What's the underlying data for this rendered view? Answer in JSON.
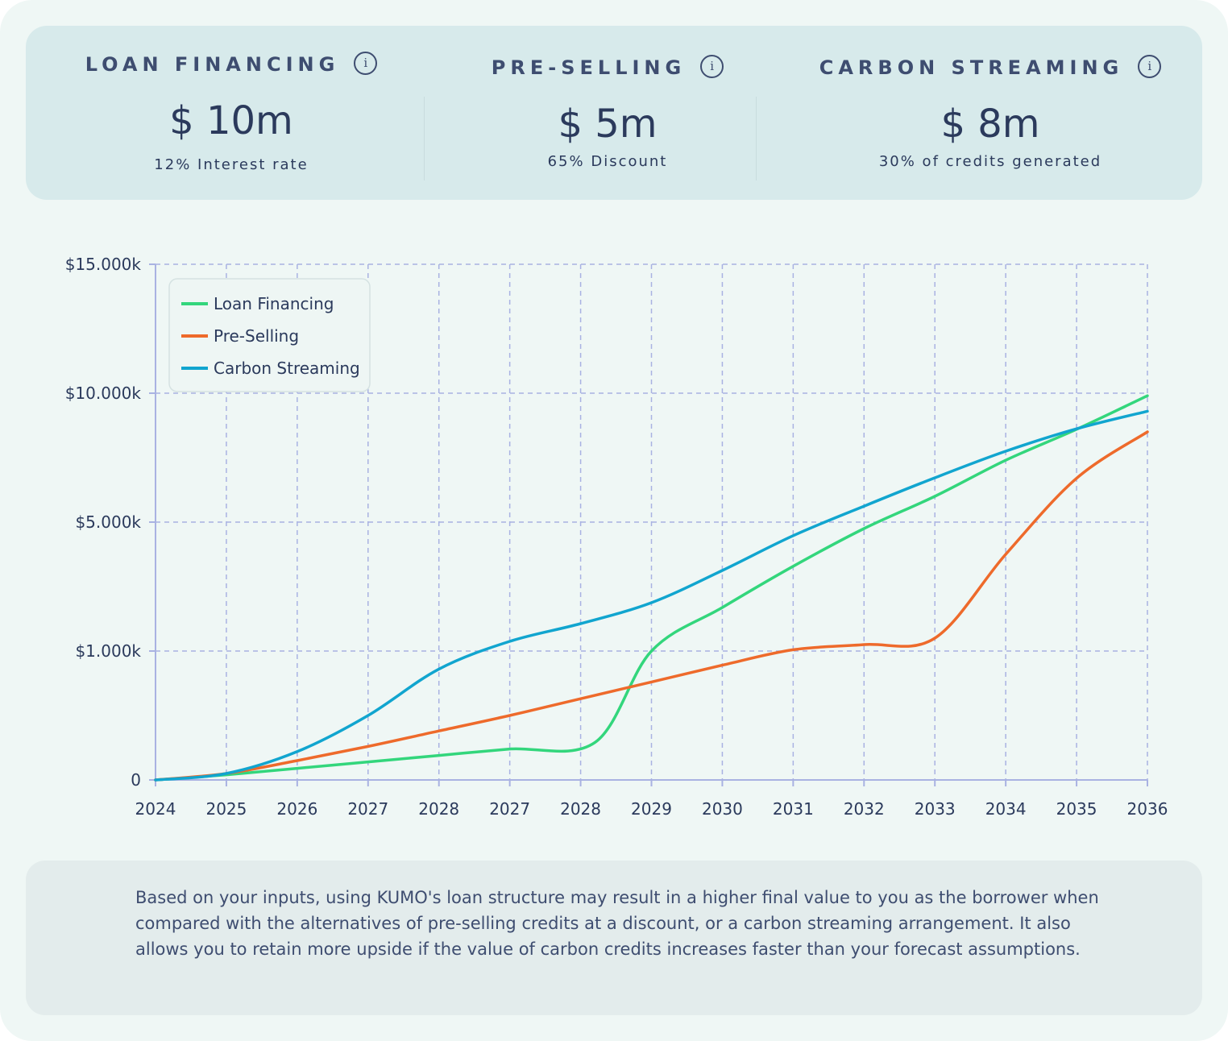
{
  "summary": {
    "loan": {
      "label": "LOAN FINANCING",
      "value": "$ 10m",
      "sub": "12% Interest rate",
      "icon": "info-icon"
    },
    "pre": {
      "label": "PRE-SELLING",
      "value": "$ 5m",
      "sub": "65% Discount",
      "icon": "info-icon"
    },
    "carbon": {
      "label": "CARBON STREAMING",
      "value": "$ 8m",
      "sub": "30% of credits generated",
      "icon": "info-icon"
    }
  },
  "colors": {
    "loan": "#33d67c",
    "pre": "#ee6a2b",
    "carbon": "#11a5cf",
    "grid": "#a9b2e2",
    "axis": "#a9b2e2",
    "text": "#2b3a5c"
  },
  "chart_data": {
    "type": "line",
    "title": "",
    "xlabel": "",
    "ylabel": "",
    "x_tick_labels": [
      "2024",
      "2025",
      "2026",
      "2027",
      "2028",
      "2027",
      "2028",
      "2029",
      "2030",
      "2031",
      "2032",
      "2033",
      "2034",
      "2035",
      "2036"
    ],
    "y_tick_labels": [
      "0",
      "$1.000k",
      "$5.000k",
      "$10.000k",
      "$15.000k"
    ],
    "y_scale_note": "non-linear axis: gridline levels 0, 1000, 5000, 10000, 15000 are equally spaced",
    "y_levels": [
      0,
      1000,
      5000,
      10000,
      15000
    ],
    "xlim": [
      0,
      14
    ],
    "ylim": [
      0,
      15000
    ],
    "legend": {
      "position": "top-left"
    },
    "series": [
      {
        "name": "Loan Financing",
        "color_key": "loan",
        "points": [
          [
            0,
            0
          ],
          [
            1,
            40
          ],
          [
            2,
            90
          ],
          [
            3,
            140
          ],
          [
            4,
            190
          ],
          [
            5,
            240
          ],
          [
            6.2,
            290
          ],
          [
            7,
            1000
          ],
          [
            8,
            2350
          ],
          [
            9,
            3630
          ],
          [
            10,
            4800
          ],
          [
            11,
            6000
          ],
          [
            12,
            7400
          ],
          [
            13,
            8600
          ],
          [
            14,
            9900
          ]
        ]
      },
      {
        "name": "Pre-Selling",
        "color_key": "pre",
        "points": [
          [
            0,
            0
          ],
          [
            1,
            50
          ],
          [
            2,
            150
          ],
          [
            3,
            260
          ],
          [
            4,
            380
          ],
          [
            5,
            500
          ],
          [
            6,
            630
          ],
          [
            7,
            760
          ],
          [
            8,
            890
          ],
          [
            9,
            1040
          ],
          [
            10,
            1200
          ],
          [
            11,
            1400
          ],
          [
            12,
            4000
          ],
          [
            13,
            6700
          ],
          [
            14,
            8500
          ]
        ]
      },
      {
        "name": "Carbon Streaming",
        "color_key": "carbon",
        "points": [
          [
            0,
            0
          ],
          [
            1,
            50
          ],
          [
            2,
            220
          ],
          [
            3,
            500
          ],
          [
            4,
            860
          ],
          [
            5,
            1300
          ],
          [
            6,
            1850
          ],
          [
            7,
            2500
          ],
          [
            8,
            3500
          ],
          [
            9,
            4580
          ],
          [
            10,
            5620
          ],
          [
            11,
            6720
          ],
          [
            12,
            7750
          ],
          [
            13,
            8620
          ],
          [
            14,
            9300
          ]
        ]
      }
    ]
  },
  "note": {
    "text": "Based on your inputs, using KUMO's loan structure may result in a higher final value to you as the borrower when compared with the alternatives of pre-selling credits at a discount, or a carbon streaming arrangement. It also allows you to retain more upside if the value of carbon credits increases faster than your forecast assumptions."
  }
}
